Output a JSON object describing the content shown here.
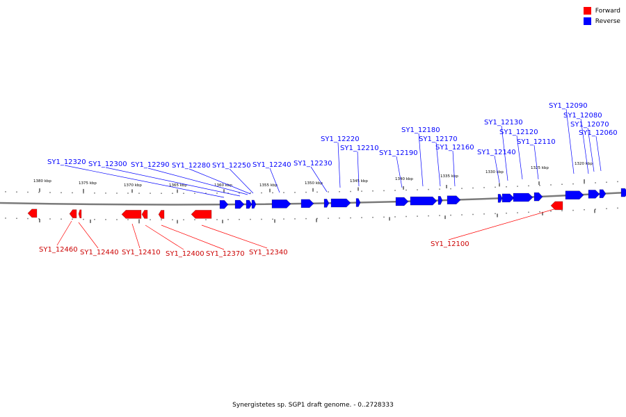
{
  "colors": {
    "forward": "#ff0000",
    "reverse": "#0000ff",
    "backbone": "#7a7a7a"
  },
  "legend": {
    "forward_label": "Forward",
    "reverse_label": "Reverse"
  },
  "caption": "Synergistetes sp. SGP1 draft genome. - 0..2728333",
  "scale_labels": [
    "1380 kbp",
    "1375 kbp",
    "1370 kbp",
    "1365 kbp",
    "1360 kbp",
    "1355 kbp",
    "1350 kbp",
    "1345 kbp",
    "1340 kbp",
    "1335 kbp",
    "1330 kbp",
    "1325 kbp",
    "1320 kbp"
  ],
  "reverse_genes": [
    "SY1_12320",
    "SY1_12300",
    "SY1_12290",
    "SY1_12280",
    "SY1_12250",
    "SY1_12240",
    "SY1_12230",
    "SY1_12220",
    "SY1_12210",
    "SY1_12190",
    "SY1_12180",
    "SY1_12170",
    "SY1_12160",
    "SY1_12140",
    "SY1_12130",
    "SY1_12120",
    "SY1_12110",
    "SY1_12090",
    "SY1_12080",
    "SY1_12070",
    "SY1_12060"
  ],
  "forward_genes": [
    "SY1_12460",
    "SY1_12440",
    "SY1_12410",
    "SY1_12400",
    "SY1_12370",
    "SY1_12340",
    "SY1_12100"
  ]
}
